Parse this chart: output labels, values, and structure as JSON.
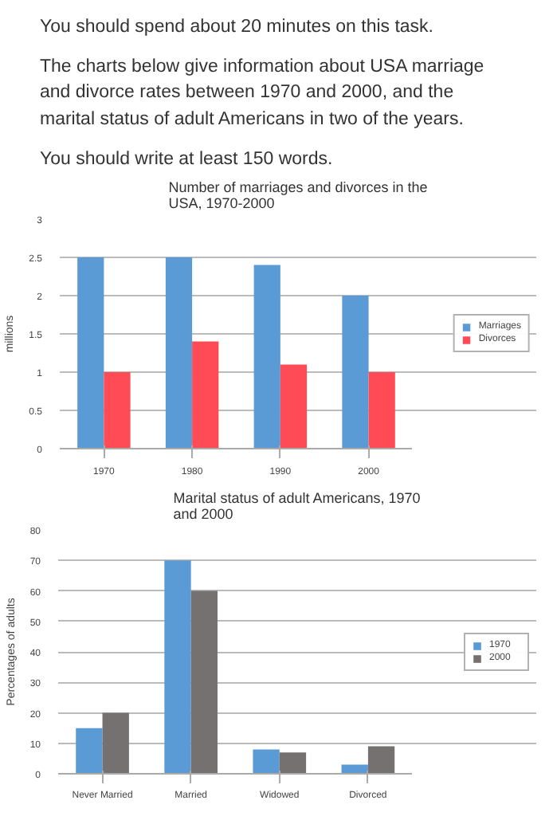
{
  "chart_data": [
    {
      "type": "bar",
      "title": "Number of marriages and divorces in the USA, 1970-2000",
      "ylabel": "millions",
      "annotations": [
        "You should spend about 20 minutes on this task.",
        "The charts below give information about USA marriage and divorce rates between 1970 and 2000, and the marital status of adult Americans in two of the years.",
        "You should write at least 150 words."
      ],
      "categories": [
        "1970",
        "1980",
        "1990",
        "2000"
      ],
      "series": [
        {
          "name": "Marriages",
          "color": "#5b9bd5",
          "values": [
            2.5,
            2.5,
            2.4,
            2.0
          ]
        },
        {
          "name": "Divorces",
          "color": "#ff4b55",
          "values": [
            1.0,
            1.4,
            1.1,
            1.0
          ]
        }
      ],
      "ylim": [
        0,
        3
      ],
      "yticks": [
        0,
        0.5,
        1,
        1.5,
        2,
        2.5,
        3
      ],
      "grid": "y",
      "legend": "right"
    },
    {
      "type": "bar",
      "title": "Marital status of adult Americans, 1970 and 2000",
      "ylabel": "Percentages of adults",
      "categories": [
        "Never Married",
        "Married",
        "Widowed",
        "Divorced"
      ],
      "series": [
        {
          "name": "1970",
          "color": "#5b9bd5",
          "values": [
            15,
            70,
            8,
            3
          ]
        },
        {
          "name": "2000",
          "color": "#767171",
          "values": [
            20,
            60,
            7,
            9
          ]
        }
      ],
      "ylim": [
        0,
        80
      ],
      "yticks": [
        0,
        10,
        20,
        30,
        40,
        50,
        60,
        70,
        80
      ],
      "grid": "y",
      "legend": "right"
    }
  ]
}
